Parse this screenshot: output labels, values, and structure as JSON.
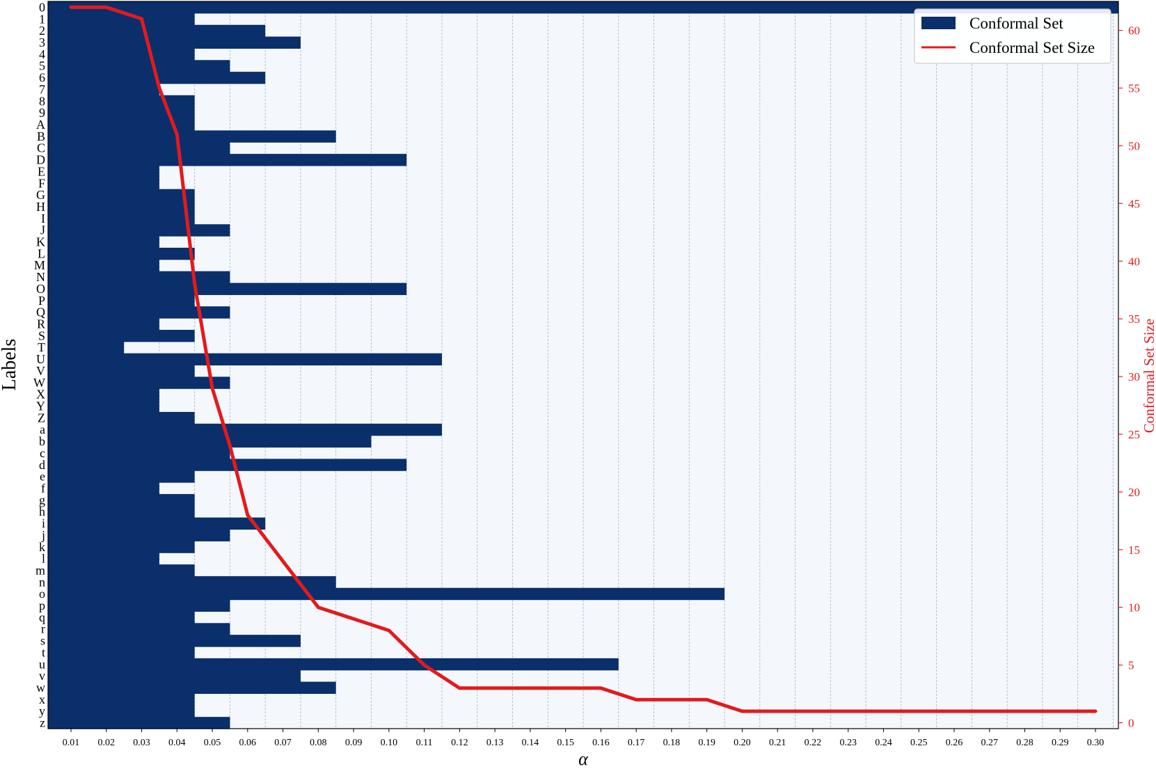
{
  "chart_data": {
    "type": "heatmap",
    "title": "",
    "xlabel": "α",
    "ylabel": "Labels",
    "y2label": "Conformal Set Size",
    "x_ticks": [
      "0.01",
      "0.02",
      "0.03",
      "0.04",
      "0.05",
      "0.06",
      "0.07",
      "0.08",
      "0.09",
      "0.10",
      "0.11",
      "0.12",
      "0.13",
      "0.14",
      "0.15",
      "0.16",
      "0.17",
      "0.18",
      "0.19",
      "0.20",
      "0.21",
      "0.22",
      "0.23",
      "0.24",
      "0.25",
      "0.26",
      "0.27",
      "0.28",
      "0.29",
      "0.30"
    ],
    "x_range": [
      0.01,
      0.3
    ],
    "y2_ticks": [
      "0",
      "5",
      "10",
      "15",
      "20",
      "25",
      "30",
      "35",
      "40",
      "45",
      "50",
      "55",
      "60"
    ],
    "y2lim": [
      0,
      62
    ],
    "labels": [
      "0",
      "1",
      "2",
      "3",
      "4",
      "5",
      "6",
      "7",
      "8",
      "9",
      "A",
      "B",
      "C",
      "D",
      "E",
      "F",
      "G",
      "H",
      "I",
      "J",
      "K",
      "L",
      "M",
      "N",
      "O",
      "P",
      "Q",
      "R",
      "S",
      "T",
      "U",
      "V",
      "W",
      "X",
      "Y",
      "Z",
      "a",
      "b",
      "c",
      "d",
      "e",
      "f",
      "g",
      "h",
      "i",
      "j",
      "k",
      "l",
      "m",
      "n",
      "o",
      "p",
      "q",
      "r",
      "s",
      "t",
      "u",
      "v",
      "w",
      "x",
      "y",
      "z"
    ],
    "inclusion_max_alpha": [
      0.3,
      0.04,
      0.06,
      0.07,
      0.04,
      0.05,
      0.06,
      0.03,
      0.04,
      0.04,
      0.04,
      0.08,
      0.05,
      0.1,
      0.03,
      0.03,
      0.04,
      0.04,
      0.04,
      0.05,
      0.03,
      0.04,
      0.03,
      0.05,
      0.1,
      0.04,
      0.05,
      0.03,
      0.04,
      0.02,
      0.11,
      0.04,
      0.05,
      0.03,
      0.03,
      0.04,
      0.11,
      0.09,
      0.05,
      0.1,
      0.04,
      0.03,
      0.04,
      0.04,
      0.06,
      0.05,
      0.04,
      0.03,
      0.04,
      0.08,
      0.19,
      0.05,
      0.04,
      0.05,
      0.07,
      0.04,
      0.16,
      0.07,
      0.08,
      0.04,
      0.04,
      0.05
    ],
    "size_series": {
      "name": "Conformal Set Size",
      "x": [
        0.01,
        0.02,
        0.03,
        0.035,
        0.04,
        0.045,
        0.05,
        0.055,
        0.06,
        0.07,
        0.08,
        0.09,
        0.1,
        0.11,
        0.12,
        0.13,
        0.14,
        0.15,
        0.16,
        0.17,
        0.18,
        0.19,
        0.2,
        0.21,
        0.22,
        0.23,
        0.24,
        0.25,
        0.26,
        0.27,
        0.28,
        0.29,
        0.3
      ],
      "y": [
        62,
        62,
        61,
        55,
        51,
        38,
        29,
        24,
        18,
        14,
        10,
        9,
        8,
        5,
        3,
        3,
        3,
        3,
        3,
        2,
        2,
        2,
        1,
        1,
        1,
        1,
        1,
        1,
        1,
        1,
        1,
        1,
        1
      ]
    },
    "legend": {
      "position": "top-right",
      "entries": [
        "Conformal Set",
        "Conformal Set Size"
      ]
    },
    "colors": {
      "set": "#0a2f6b",
      "line": "#e31a1c",
      "background": "#f4f8fd",
      "grid": "#8a9aa8"
    }
  }
}
